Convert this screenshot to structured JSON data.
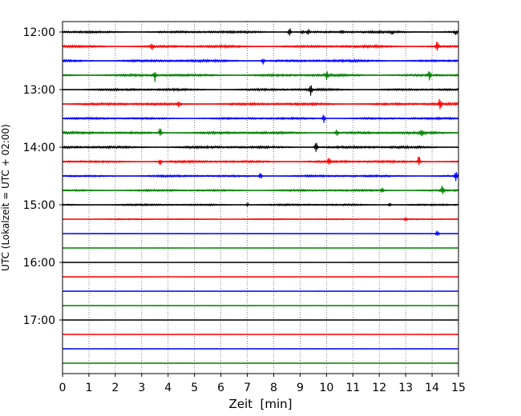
{
  "chart_data": {
    "type": "line",
    "title": "",
    "xlabel": "Zeit  [min]",
    "ylabel": "UTC (Lokalzeit = UTC + 02:00)",
    "xlim": [
      0,
      15
    ],
    "x_ticks": [
      0,
      1,
      2,
      3,
      4,
      5,
      6,
      7,
      8,
      9,
      10,
      11,
      12,
      13,
      14,
      15
    ],
    "x_tick_labels": [
      "0",
      "1",
      "2",
      "3",
      "4",
      "5",
      "6",
      "7",
      "8",
      "9",
      "10",
      "11",
      "12",
      "13",
      "14",
      "15"
    ],
    "y_ticks": [
      "12:00",
      "13:00",
      "14:00",
      "15:00",
      "16:00",
      "17:00"
    ],
    "x_gridlines": "dotted",
    "trace_interval_min": 15,
    "color_cycle": [
      "#000000",
      "#ff0000",
      "#0000ff",
      "#008000"
    ],
    "traces": [
      {
        "start": "12:00",
        "color": "#000000",
        "level": 0.5,
        "events": [
          [
            8.6,
            0.6
          ],
          [
            9.1,
            0.35
          ],
          [
            9.3,
            0.4
          ],
          [
            10.6,
            0.3
          ],
          [
            12.5,
            0.3
          ],
          [
            14.9,
            0.3
          ]
        ]
      },
      {
        "start": "12:15",
        "color": "#ff0000",
        "level": 0.55,
        "events": [
          [
            3.4,
            0.5
          ],
          [
            14.2,
            0.9
          ]
        ]
      },
      {
        "start": "12:30",
        "color": "#0000ff",
        "level": 0.55,
        "events": [
          [
            7.6,
            0.45
          ]
        ]
      },
      {
        "start": "12:45",
        "color": "#008000",
        "level": 0.55,
        "events": [
          [
            3.5,
            0.9
          ],
          [
            10.0,
            0.6
          ],
          [
            13.9,
            0.6
          ]
        ]
      },
      {
        "start": "13:00",
        "color": "#000000",
        "level": 0.5,
        "events": [
          [
            9.4,
            0.8
          ]
        ]
      },
      {
        "start": "13:15",
        "color": "#ff0000",
        "level": 0.55,
        "events": [
          [
            4.4,
            0.6
          ],
          [
            14.3,
            0.9
          ]
        ]
      },
      {
        "start": "13:30",
        "color": "#0000ff",
        "level": 0.45,
        "events": [
          [
            9.9,
            0.6
          ]
        ]
      },
      {
        "start": "13:45",
        "color": "#008000",
        "level": 0.55,
        "events": [
          [
            3.7,
            0.7
          ],
          [
            10.4,
            0.5
          ],
          [
            13.6,
            0.7
          ]
        ]
      },
      {
        "start": "14:00",
        "color": "#000000",
        "level": 0.55,
        "events": [
          [
            9.6,
            0.9
          ]
        ]
      },
      {
        "start": "14:15",
        "color": "#ff0000",
        "level": 0.5,
        "events": [
          [
            3.7,
            0.5
          ],
          [
            10.1,
            0.5
          ],
          [
            13.5,
            0.8
          ]
        ]
      },
      {
        "start": "14:30",
        "color": "#0000ff",
        "level": 0.45,
        "events": [
          [
            7.5,
            0.45
          ],
          [
            14.9,
            0.6
          ]
        ]
      },
      {
        "start": "14:45",
        "color": "#008000",
        "level": 0.45,
        "events": [
          [
            12.1,
            0.5
          ],
          [
            14.4,
            0.9
          ]
        ]
      },
      {
        "start": "15:00",
        "color": "#000000",
        "level": 0.4,
        "events": [
          [
            7.0,
            0.35
          ],
          [
            12.4,
            0.3
          ]
        ]
      },
      {
        "start": "15:15",
        "color": "#ff0000",
        "level": 0.25,
        "events": [
          [
            13.0,
            0.35
          ]
        ]
      },
      {
        "start": "15:30",
        "color": "#0000ff",
        "level": 0.1,
        "events": [
          [
            14.2,
            0.6
          ]
        ]
      },
      {
        "start": "15:45",
        "color": "#008000",
        "level": 0.05,
        "events": []
      },
      {
        "start": "16:00",
        "color": "#000000",
        "level": 0.05,
        "events": []
      },
      {
        "start": "16:15",
        "color": "#ff0000",
        "level": 0.05,
        "events": []
      },
      {
        "start": "16:30",
        "color": "#0000ff",
        "level": 0.05,
        "events": []
      },
      {
        "start": "16:45",
        "color": "#008000",
        "level": 0.05,
        "events": []
      },
      {
        "start": "17:00",
        "color": "#000000",
        "level": 0.05,
        "events": []
      },
      {
        "start": "17:15",
        "color": "#ff0000",
        "level": 0.05,
        "events": []
      },
      {
        "start": "17:30",
        "color": "#0000ff",
        "level": 0.05,
        "events": []
      },
      {
        "start": "17:45",
        "color": "#008000",
        "level": 0.05,
        "events": []
      }
    ]
  }
}
